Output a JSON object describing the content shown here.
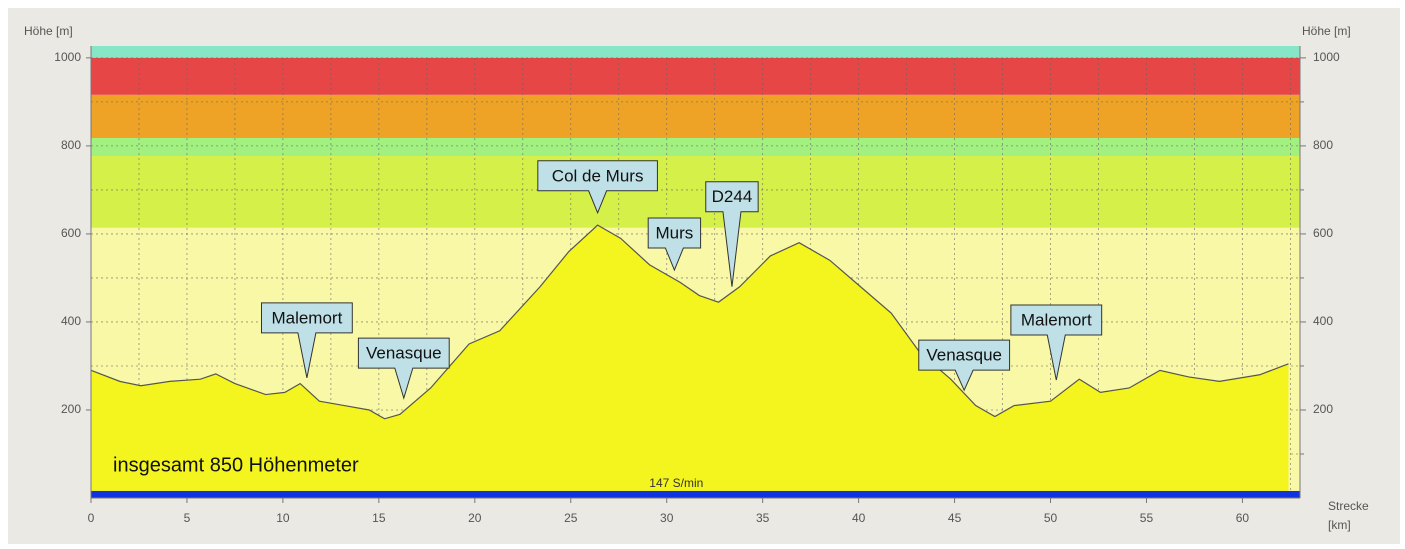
{
  "chart_data": {
    "type": "area",
    "y_label": "Höhe [m]",
    "y2_label": "Höhe [m]",
    "x_label": [
      "Strecke",
      "[km]"
    ],
    "x": [
      0,
      1.5,
      2.6,
      4.1,
      5.7,
      6.5,
      7.5,
      9.1,
      10.1,
      10.9,
      11.9,
      13.2,
      14.5,
      15.3,
      16.1,
      17.7,
      19.7,
      21.3,
      23.4,
      24.9,
      26.4,
      27.6,
      29.1,
      30.7,
      31.7,
      32.7,
      33.8,
      35.4,
      36.9,
      38.5,
      40.1,
      41.7,
      43.2,
      44.8,
      46.1,
      47.1,
      48.1,
      50.0,
      51.5,
      52.6,
      54.1,
      55.7,
      57.2,
      58.8,
      60.9,
      62.4
    ],
    "values": [
      290,
      265,
      255,
      265,
      270,
      282,
      260,
      235,
      240,
      260,
      220,
      210,
      200,
      180,
      190,
      250,
      350,
      380,
      480,
      560,
      620,
      590,
      530,
      490,
      460,
      445,
      480,
      550,
      580,
      540,
      480,
      420,
      330,
      270,
      210,
      185,
      210,
      220,
      270,
      240,
      250,
      290,
      275,
      265,
      280,
      305
    ],
    "color": "#f4f41e",
    "line_color": "#555555",
    "xlim": [
      0,
      63
    ],
    "ylim": [
      0,
      1027
    ],
    "xticks": [
      0,
      5,
      10,
      15,
      20,
      25,
      30,
      35,
      40,
      45,
      50,
      55,
      60
    ],
    "xticks_minor": [
      2.5,
      7.5,
      12.5,
      17.5,
      22.5,
      27.5,
      32.5,
      37.5,
      42.5,
      47.5,
      52.5,
      57.5,
      62.5
    ],
    "yticks": [
      200,
      400,
      600,
      800,
      1000
    ],
    "yticks_minor": [
      100,
      300,
      500,
      700,
      900
    ],
    "grid": true,
    "bands": [
      {
        "from": 1000,
        "to": 1027,
        "color": "#86e6c6"
      },
      {
        "from": 916,
        "to": 1000,
        "color": "#e64646"
      },
      {
        "from": 818,
        "to": 916,
        "color": "#eea226"
      },
      {
        "from": 777,
        "to": 818,
        "color": "#a2f080"
      },
      {
        "from": 614,
        "to": 777,
        "color": "#d6f04a"
      },
      {
        "from": 0,
        "to": 614,
        "color": "#f8f8a6"
      }
    ],
    "baseline_bar": {
      "from": 0,
      "to": 16,
      "color": "#1033e0",
      "label": "147 S/min"
    },
    "total_label": "insgesamt 850 Höhenmeter",
    "annotations": [
      {
        "text": "Malemort",
        "x": 11.25,
        "y": 273
      },
      {
        "text": "Venasque",
        "x": 16.3,
        "y": 227
      },
      {
        "text": "Col de Murs",
        "x": 26.4,
        "y": 648
      },
      {
        "text": "Murs",
        "x": 30.4,
        "y": 518
      },
      {
        "text": "D244",
        "x": 33.4,
        "y": 480
      },
      {
        "text": "Venasque",
        "x": 45.5,
        "y": 245
      },
      {
        "text": "Malemort",
        "x": 50.3,
        "y": 268
      }
    ]
  }
}
